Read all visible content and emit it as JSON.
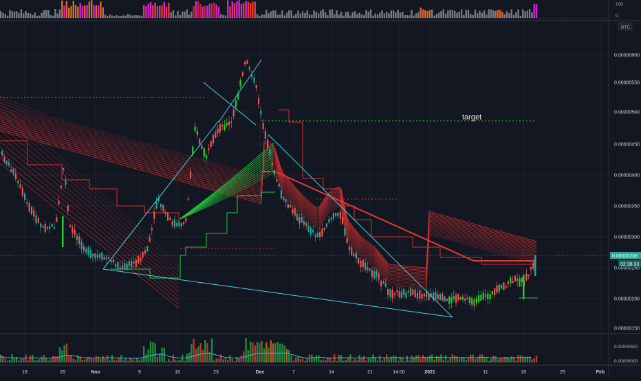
{
  "top_indicator": {
    "scale_labels": [
      "100",
      "0"
    ]
  },
  "main_chart": {
    "symbol_tag": "BTC",
    "price_labels": [
      "0.00000600",
      "0.00000550",
      "0.00000500",
      "0.00000450",
      "0.00000400",
      "0.00000350",
      "0.00000300",
      "0.00000250",
      "0.00000200",
      "0.00000150"
    ],
    "current_price": "0.00000268",
    "countdown": "02:38:33",
    "annotation_target": "target"
  },
  "volume_pane": {
    "scale_labels": [
      "0.00000500",
      "0.00000000"
    ]
  },
  "time_axis": {
    "labels": [
      "19",
      "26",
      "Nov",
      "9",
      "16",
      "23",
      "Dec",
      "7",
      "14",
      "21",
      "14:00",
      "2021",
      "11",
      "18",
      "25",
      "Feb"
    ]
  },
  "colors": {
    "background": "#131722",
    "up": "#26a69a",
    "up_bright": "#1fd12a",
    "down": "#ef5350",
    "ribbon_red": "#d32f2f",
    "ribbon_green": "#22c93a",
    "trendline": "#4dd0e1",
    "target_line": "#2e9d31",
    "magenta": "#d025d6",
    "orange": "#d86a28"
  },
  "chart_data": {
    "type": "candlestick",
    "x": [
      "19",
      "26",
      "Nov",
      "9",
      "16",
      "23",
      "Dec",
      "7",
      "14",
      "21",
      "2021",
      "11",
      "18",
      "25",
      "Feb"
    ],
    "y_unit": "BTC",
    "ylim": [
      1.5e-06,
      6.3e-06
    ],
    "close_path": [
      [
        "Oct 15",
        4.7e-06
      ],
      [
        "Oct 19",
        4.1e-06
      ],
      [
        "Oct 24",
        3.4e-06
      ],
      [
        "Oct 26",
        3.3e-06
      ],
      [
        "Oct 27",
        4.2e-06
      ],
      [
        "Oct 30",
        3e-06
      ],
      [
        "Nov 4",
        2.65e-06
      ],
      [
        "Nov 7",
        2.55e-06
      ],
      [
        "Nov 10",
        3.3e-06
      ],
      [
        "Nov 12",
        3.6e-06
      ],
      [
        "Nov 15",
        3.2e-06
      ],
      [
        "Nov 18",
        4.8e-06
      ],
      [
        "Nov 21",
        4.4e-06
      ],
      [
        "Nov 24",
        5.1e-06
      ],
      [
        "Nov 27",
        4.6e-06
      ],
      [
        "Nov 29",
        6.1e-06
      ],
      [
        "Dec 1",
        5.5e-06
      ],
      [
        "Dec 3",
        4.6e-06
      ],
      [
        "Dec 5",
        4e-06
      ],
      [
        "Dec 8",
        3.8e-06
      ],
      [
        "Dec 11",
        3.4e-06
      ],
      [
        "Dec 14",
        3.6e-06
      ],
      [
        "Dec 17",
        3e-06
      ],
      [
        "Dec 20",
        2.7e-06
      ],
      [
        "Dec 23",
        2.4e-06
      ],
      [
        "Dec 26",
        2.15e-06
      ],
      [
        "Dec 29",
        2.1e-06
      ],
      [
        "Jan 1",
        2.15e-06
      ],
      [
        "Jan 4",
        2e-06
      ],
      [
        "Jan 7",
        2.1e-06
      ],
      [
        "Jan 10",
        2.3e-06
      ],
      [
        "Jan 13",
        2.25e-06
      ],
      [
        "Jan 16",
        2.4e-06
      ],
      [
        "Jan 18",
        2.5e-06
      ],
      [
        "Jan 19",
        2.68e-06
      ]
    ],
    "levels": {
      "target": 4.9e-06,
      "early_high_dotted": 5.25e-06,
      "current": 2.68e-06
    }
  }
}
